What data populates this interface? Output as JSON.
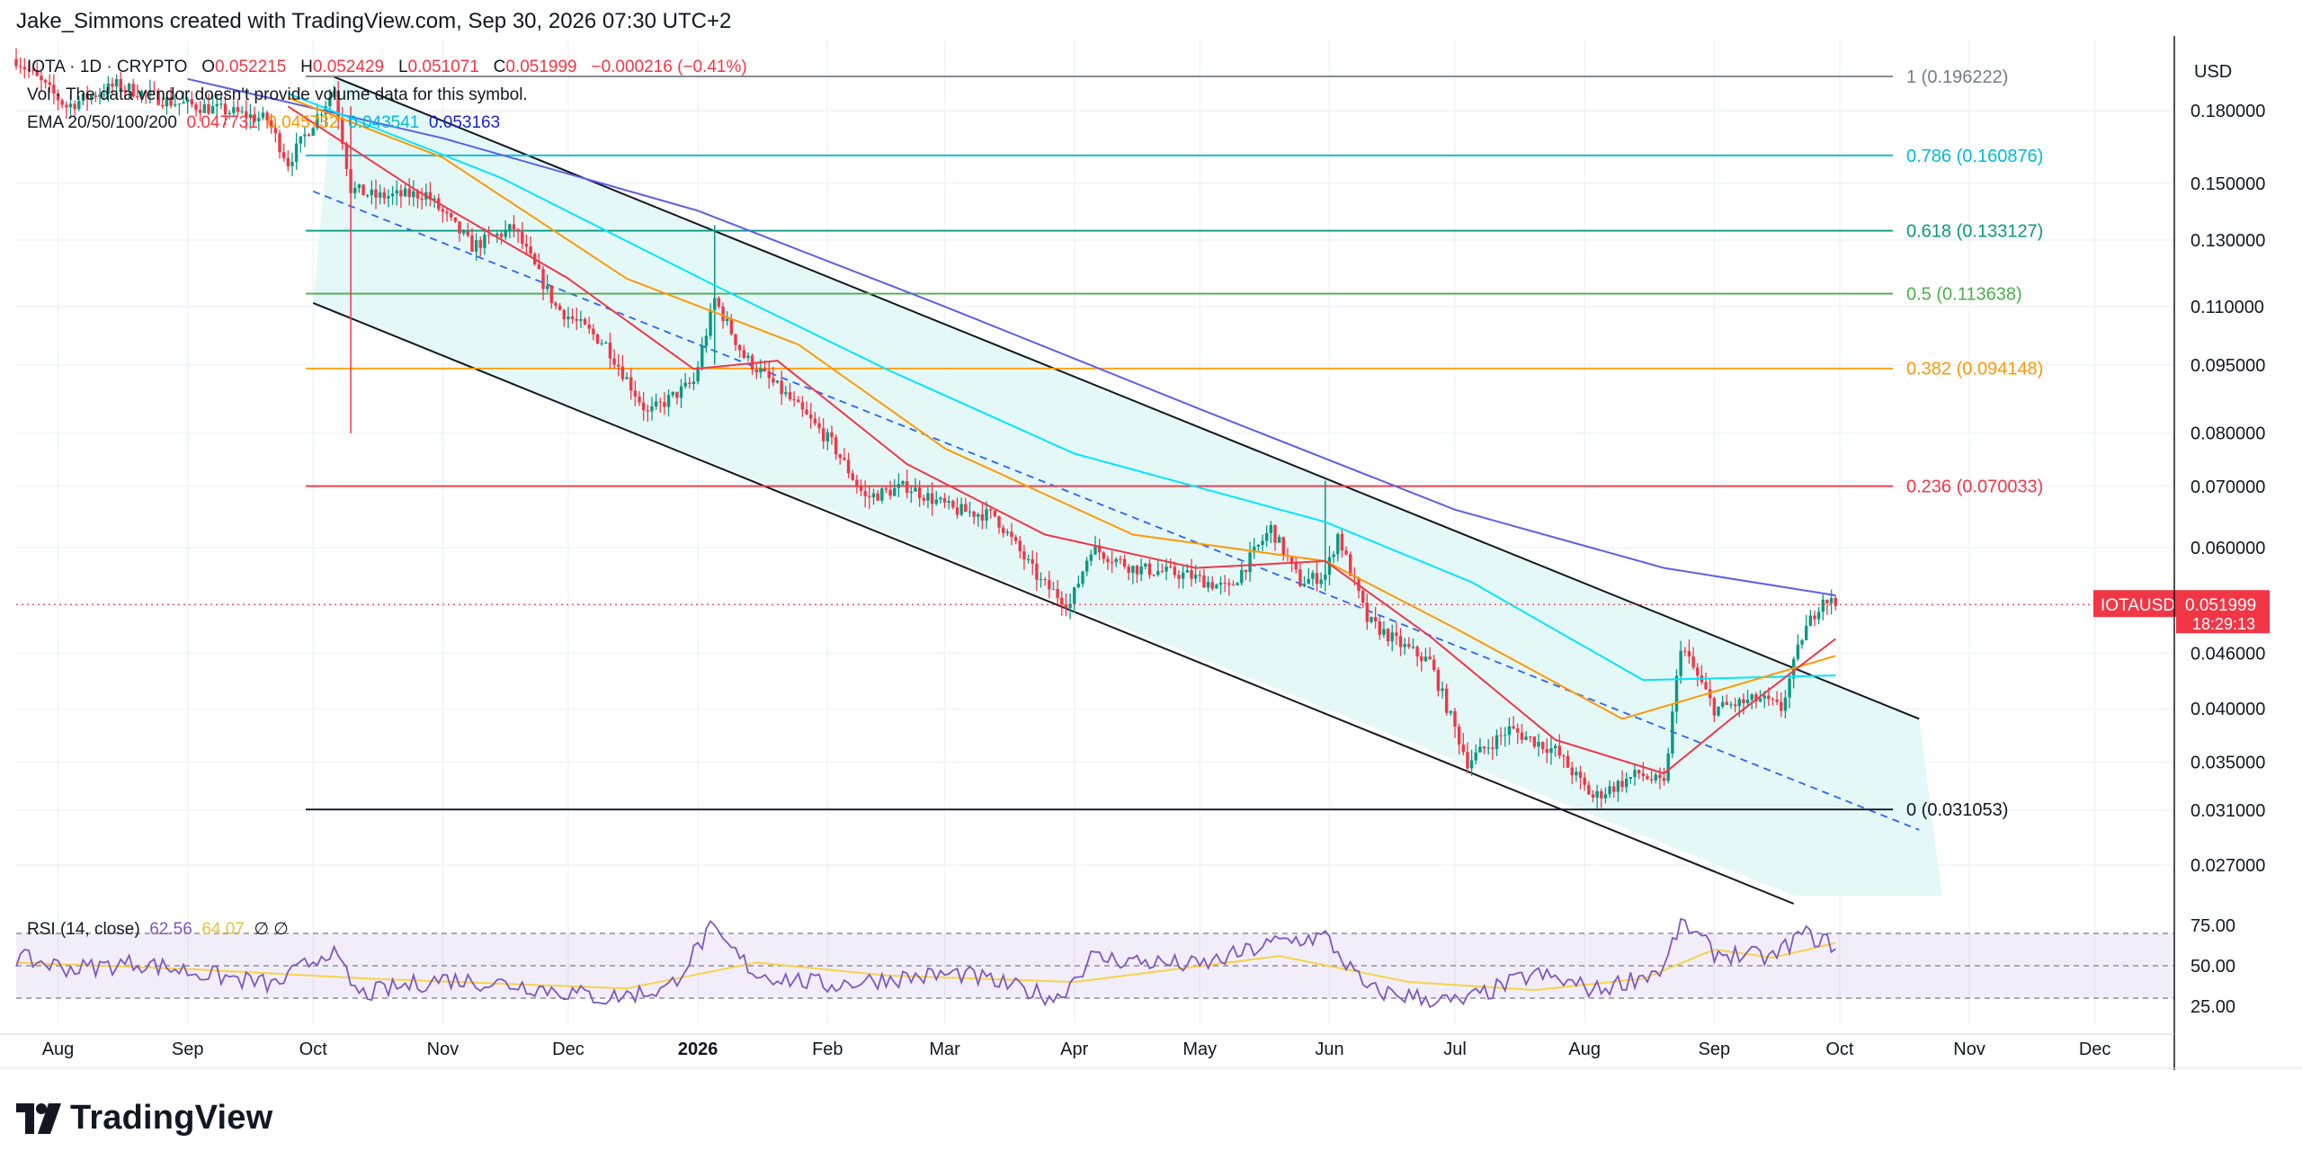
{
  "header": {
    "credit": "Jake_Simmons created with TradingView.com, Sep 30, 2026 07:30 UTC+2"
  },
  "legend": {
    "symbol_line": "IOTA · 1D · CRYPTO",
    "o_label": "O",
    "o_value": "0.052215",
    "h_label": "H",
    "h_value": "0.052429",
    "l_label": "L",
    "l_value": "0.051071",
    "c_label": "C",
    "c_value": "0.051999",
    "change": "−0.000216 (−0.41%)",
    "vol_line": "Vol · The data vendor doesn't provide volume data for this symbol.",
    "ema_label": "EMA 20/50/100/200",
    "ema_values": [
      "0.047731",
      "0.045732",
      "0.043541",
      "0.053163"
    ],
    "rsi_label": "RSI (14, close)",
    "rsi_value": "62.56",
    "rsi_ma_value": "64.07",
    "rsi_extra": "∅  ∅"
  },
  "price_axis": {
    "currency": "USD",
    "ticks": [
      "0.180000",
      "0.150000",
      "0.130000",
      "0.110000",
      "0.095000",
      "0.080000",
      "0.070000",
      "0.060000",
      "0.046000",
      "0.040000",
      "0.035000",
      "0.031000",
      "0.027000"
    ],
    "last_label": "IOTAUSD",
    "last_value": "0.051999",
    "countdown": "18:29:13"
  },
  "rsi_axis": {
    "ticks": [
      "75.00",
      "50.00",
      "25.00"
    ]
  },
  "time_axis": {
    "ticks": [
      "Aug",
      "Sep",
      "Oct",
      "Nov",
      "Dec",
      "2026",
      "Feb",
      "Mar",
      "Apr",
      "May",
      "Jun",
      "Jul",
      "Aug",
      "Sep",
      "Oct",
      "Nov",
      "Dec"
    ]
  },
  "fib_levels": [
    {
      "ratio": "1",
      "value": 0.196222,
      "label": "1 (0.196222)",
      "color": "#787b86"
    },
    {
      "ratio": "0.786",
      "value": 0.160876,
      "label": "0.786 (0.160876)",
      "color": "#00bcd4"
    },
    {
      "ratio": "0.618",
      "value": 0.133127,
      "label": "0.618 (0.133127)",
      "color": "#089981"
    },
    {
      "ratio": "0.5",
      "value": 0.113638,
      "label": "0.5 (0.113638)",
      "color": "#4caf50"
    },
    {
      "ratio": "0.382",
      "value": 0.094148,
      "label": "0.382 (0.094148)",
      "color": "#ff9800"
    },
    {
      "ratio": "0.236",
      "value": 0.070033,
      "label": "0.236 (0.070033)",
      "color": "#f23645"
    },
    {
      "ratio": "0",
      "value": 0.031053,
      "label": "0 (0.031053)",
      "color": "#131722"
    }
  ],
  "colors": {
    "up": "#089981",
    "down": "#f23645",
    "ema20": "#f23645",
    "ema50": "#ff9800",
    "ema100": "#00e5ff",
    "ema200": "#5b5fe6",
    "rsi": "#7e57c2",
    "rsi_ma": "#f5d34a",
    "channel_fill": "#e0f7f7",
    "last_price": "#f23645"
  },
  "chart_data": {
    "type": "candlestick",
    "symbol": "IOTAUSD",
    "timeframe": "1D",
    "y_scale": "log",
    "ylim": [
      0.0245,
      0.21
    ],
    "x_range": [
      "2025-07-22",
      "2026-12-20"
    ],
    "ohlc_last": {
      "o": 0.052215,
      "h": 0.052429,
      "l": 0.051071,
      "c": 0.051999
    },
    "close_path": [
      [
        "2025-07-22",
        0.205
      ],
      [
        "2025-08-03",
        0.182
      ],
      [
        "2025-08-15",
        0.192
      ],
      [
        "2025-08-28",
        0.184
      ],
      [
        "2025-09-10",
        0.18
      ],
      [
        "2025-09-20",
        0.176
      ],
      [
        "2025-09-25",
        0.158
      ],
      [
        "2025-10-06",
        0.19
      ],
      [
        "2025-10-10",
        0.148
      ],
      [
        "2025-10-16",
        0.145
      ],
      [
        "2025-10-28",
        0.146
      ],
      [
        "2025-11-08",
        0.128
      ],
      [
        "2025-11-18",
        0.134
      ],
      [
        "2025-11-28",
        0.11
      ],
      [
        "2025-12-10",
        0.1
      ],
      [
        "2025-12-20",
        0.084
      ],
      [
        "2025-12-31",
        0.091
      ],
      [
        "2026-01-05",
        0.112
      ],
      [
        "2026-01-12",
        0.097
      ],
      [
        "2026-01-22",
        0.088
      ],
      [
        "2026-02-02",
        0.078
      ],
      [
        "2026-02-10",
        0.068
      ],
      [
        "2026-02-20",
        0.07
      ],
      [
        "2026-03-03",
        0.066
      ],
      [
        "2026-03-13",
        0.065
      ],
      [
        "2026-03-24",
        0.055
      ],
      [
        "2026-03-31",
        0.052
      ],
      [
        "2026-04-05",
        0.06
      ],
      [
        "2026-04-15",
        0.057
      ],
      [
        "2026-04-28",
        0.056
      ],
      [
        "2026-05-08",
        0.054
      ],
      [
        "2026-05-18",
        0.063
      ],
      [
        "2026-05-25",
        0.055
      ],
      [
        "2026-05-31",
        0.056
      ],
      [
        "2026-06-03",
        0.062
      ],
      [
        "2026-06-10",
        0.05
      ],
      [
        "2026-06-18",
        0.047
      ],
      [
        "2026-06-25",
        0.045
      ],
      [
        "2026-07-04",
        0.035
      ],
      [
        "2026-07-14",
        0.038
      ],
      [
        "2026-07-25",
        0.036
      ],
      [
        "2026-08-03",
        0.032
      ],
      [
        "2026-08-14",
        0.034
      ],
      [
        "2026-08-20",
        0.033
      ],
      [
        "2026-08-24",
        0.047
      ],
      [
        "2026-09-01",
        0.04
      ],
      [
        "2026-09-12",
        0.041
      ],
      [
        "2026-09-17",
        0.04
      ],
      [
        "2026-09-22",
        0.048
      ],
      [
        "2026-09-27",
        0.053
      ],
      [
        "2026-09-30",
        0.051999
      ]
    ],
    "ema20": [
      [
        "2025-09-25",
        0.182
      ],
      [
        "2025-10-25",
        0.148
      ],
      [
        "2025-12-01",
        0.118
      ],
      [
        "2025-12-31",
        0.094
      ],
      [
        "2026-01-20",
        0.096
      ],
      [
        "2026-02-20",
        0.074
      ],
      [
        "2026-03-25",
        0.062
      ],
      [
        "2026-04-30",
        0.057
      ],
      [
        "2026-05-31",
        0.058
      ],
      [
        "2026-06-25",
        0.048
      ],
      [
        "2026-07-25",
        0.037
      ],
      [
        "2026-08-20",
        0.034
      ],
      [
        "2026-09-05",
        0.039
      ],
      [
        "2026-09-30",
        0.0477
      ]
    ],
    "ema50": [
      [
        "2025-09-25",
        0.186
      ],
      [
        "2025-11-01",
        0.16
      ],
      [
        "2025-12-15",
        0.118
      ],
      [
        "2026-01-25",
        0.1
      ],
      [
        "2026-03-01",
        0.077
      ],
      [
        "2026-04-15",
        0.062
      ],
      [
        "2026-05-31",
        0.058
      ],
      [
        "2026-07-01",
        0.049
      ],
      [
        "2026-08-10",
        0.039
      ],
      [
        "2026-09-30",
        0.0457
      ]
    ],
    "ema100": [
      [
        "2025-09-25",
        0.188
      ],
      [
        "2025-11-15",
        0.152
      ],
      [
        "2026-01-05",
        0.116
      ],
      [
        "2026-02-15",
        0.094
      ],
      [
        "2026-04-01",
        0.076
      ],
      [
        "2026-05-31",
        0.064
      ],
      [
        "2026-07-05",
        0.055
      ],
      [
        "2026-08-15",
        0.043
      ],
      [
        "2026-09-30",
        0.0435
      ]
    ],
    "ema200": [
      [
        "2025-09-01",
        0.195
      ],
      [
        "2025-11-01",
        0.168
      ],
      [
        "2026-01-01",
        0.14
      ],
      [
        "2026-03-01",
        0.11
      ],
      [
        "2026-05-01",
        0.085
      ],
      [
        "2026-07-01",
        0.066
      ],
      [
        "2026-08-20",
        0.057
      ],
      [
        "2026-09-30",
        0.0532
      ]
    ],
    "channel": {
      "upper": [
        [
          "2025-10-06",
          0.196
        ],
        [
          "2026-10-20",
          0.039
        ]
      ],
      "mid": [
        [
          "2025-10-01",
          0.147
        ],
        [
          "2026-10-20",
          0.0295
        ]
      ],
      "lower": [
        [
          "2025-10-01",
          0.111
        ],
        [
          "2026-09-20",
          0.0245
        ]
      ]
    },
    "rsi": {
      "levels": [
        70,
        50,
        30
      ],
      "ylim": [
        20,
        80
      ],
      "series": [
        [
          "2025-07-22",
          55
        ],
        [
          "2025-08-05",
          48
        ],
        [
          "2025-08-20",
          52
        ],
        [
          "2025-09-05",
          45
        ],
        [
          "2025-09-22",
          38
        ],
        [
          "2025-10-05",
          60
        ],
        [
          "2025-10-12",
          32
        ],
        [
          "2025-11-01",
          42
        ],
        [
          "2025-11-20",
          38
        ],
        [
          "2025-12-10",
          30
        ],
        [
          "2025-12-25",
          36
        ],
        [
          "2026-01-04",
          72
        ],
        [
          "2026-01-15",
          45
        ],
        [
          "2026-02-01",
          38
        ],
        [
          "2026-02-15",
          42
        ],
        [
          "2026-03-05",
          45
        ],
        [
          "2026-03-28",
          30
        ],
        [
          "2026-04-05",
          55
        ],
        [
          "2026-05-01",
          50
        ],
        [
          "2026-05-20",
          65
        ],
        [
          "2026-05-31",
          68
        ],
        [
          "2026-06-10",
          35
        ],
        [
          "2026-07-02",
          27
        ],
        [
          "2026-07-20",
          45
        ],
        [
          "2026-08-04",
          35
        ],
        [
          "2026-08-20",
          48
        ],
        [
          "2026-08-24",
          78
        ],
        [
          "2026-09-01",
          58
        ],
        [
          "2026-09-15",
          55
        ],
        [
          "2026-09-22",
          70
        ],
        [
          "2026-09-30",
          62.56
        ]
      ],
      "ma": [
        [
          "2025-07-22",
          52
        ],
        [
          "2025-09-01",
          48
        ],
        [
          "2025-10-15",
          42
        ],
        [
          "2025-12-15",
          36
        ],
        [
          "2026-01-15",
          52
        ],
        [
          "2026-02-15",
          44
        ],
        [
          "2026-04-01",
          40
        ],
        [
          "2026-05-20",
          56
        ],
        [
          "2026-06-20",
          40
        ],
        [
          "2026-07-20",
          35
        ],
        [
          "2026-08-15",
          42
        ],
        [
          "2026-09-01",
          60
        ],
        [
          "2026-09-15",
          55
        ],
        [
          "2026-09-30",
          64.07
        ]
      ]
    }
  }
}
